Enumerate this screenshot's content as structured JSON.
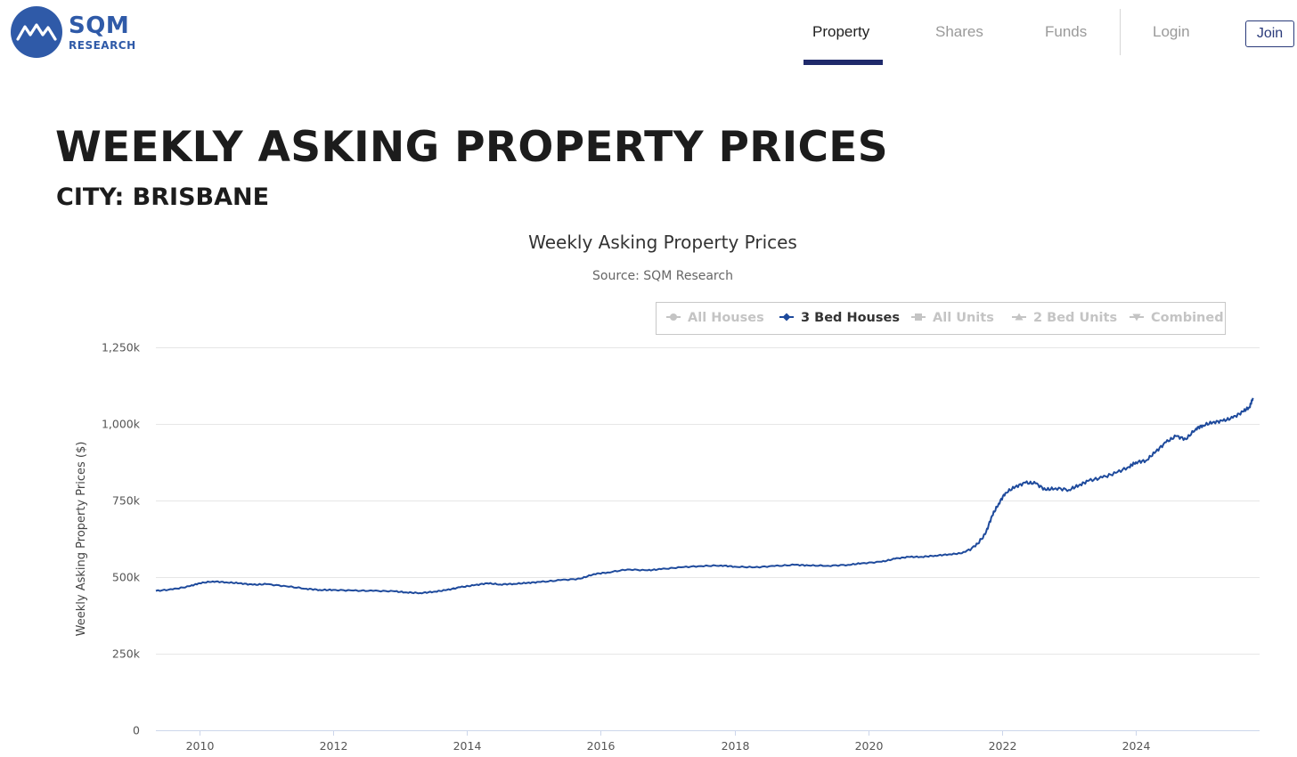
{
  "header": {
    "logo_main": "SQM",
    "logo_sub": "RESEARCH",
    "nav": [
      {
        "label": "Property",
        "active": true
      },
      {
        "label": "Shares",
        "active": false
      },
      {
        "label": "Funds",
        "active": false
      },
      {
        "label": "Login",
        "active": false
      }
    ],
    "join_label": "Join"
  },
  "page": {
    "title": "WEEKLY ASKING PROPERTY PRICES",
    "subtitle": "CITY: BRISBANE"
  },
  "colors": {
    "brand": "#2f5aa8",
    "series": "#1e4a9c",
    "legend_inactive": "#c4c4c4",
    "nav_underline": "#1f2a6b"
  },
  "chart_data": {
    "type": "line",
    "title": "Weekly Asking Property Prices",
    "subtitle": "Source: SQM Research",
    "ylabel": "Weekly Asking Property Prices ($)",
    "xlabel": "",
    "xlim": [
      2009.35,
      2025.85
    ],
    "ylim": [
      0,
      1250000
    ],
    "y_ticks": [
      {
        "value": 0,
        "label": "0"
      },
      {
        "value": 250000,
        "label": "250k"
      },
      {
        "value": 500000,
        "label": "500k"
      },
      {
        "value": 750000,
        "label": "750k"
      },
      {
        "value": 1000000,
        "label": "1,000k"
      },
      {
        "value": 1250000,
        "label": "1,250k"
      }
    ],
    "x_ticks": [
      {
        "value": 2010,
        "label": "2010"
      },
      {
        "value": 2012,
        "label": "2012"
      },
      {
        "value": 2014,
        "label": "2014"
      },
      {
        "value": 2016,
        "label": "2016"
      },
      {
        "value": 2018,
        "label": "2018"
      },
      {
        "value": 2020,
        "label": "2020"
      },
      {
        "value": 2022,
        "label": "2022"
      },
      {
        "value": 2024,
        "label": "2024"
      }
    ],
    "grid": true,
    "legend_position": "top-right",
    "legend": [
      {
        "name": "All Houses",
        "symbol": "circle",
        "active": false
      },
      {
        "name": "3 Bed Houses",
        "symbol": "diamond",
        "active": true
      },
      {
        "name": "All Units",
        "symbol": "square",
        "active": false
      },
      {
        "name": "2 Bed Units",
        "symbol": "triangle",
        "active": false
      },
      {
        "name": "Combined",
        "symbol": "triangle-down",
        "active": false
      }
    ],
    "series": [
      {
        "name": "3 Bed Houses",
        "x": [
          2009.35,
          2009.6,
          2009.85,
          2010.0,
          2010.2,
          2010.4,
          2010.6,
          2010.8,
          2011.0,
          2011.3,
          2011.6,
          2011.8,
          2012.0,
          2012.3,
          2012.6,
          2012.9,
          2013.1,
          2013.3,
          2013.5,
          2013.7,
          2013.9,
          2014.1,
          2014.3,
          2014.5,
          2014.7,
          2014.9,
          2015.1,
          2015.4,
          2015.7,
          2015.9,
          2016.1,
          2016.4,
          2016.7,
          2016.9,
          2017.2,
          2017.5,
          2017.8,
          2018.0,
          2018.3,
          2018.6,
          2018.9,
          2019.1,
          2019.4,
          2019.7,
          2019.9,
          2020.2,
          2020.4,
          2020.6,
          2020.8,
          2021.0,
          2021.2,
          2021.4,
          2021.6,
          2021.75,
          2021.85,
          2021.95,
          2022.05,
          2022.2,
          2022.35,
          2022.5,
          2022.65,
          2022.8,
          2023.0,
          2023.15,
          2023.3,
          2023.5,
          2023.7,
          2023.9,
          2024.0,
          2024.15,
          2024.3,
          2024.45,
          2024.6,
          2024.75,
          2024.9,
          2025.0,
          2025.15,
          2025.3,
          2025.45,
          2025.6,
          2025.7,
          2025.75
        ],
        "values": [
          455000,
          460000,
          470000,
          480000,
          486000,
          483000,
          480000,
          475000,
          477000,
          470000,
          462000,
          458000,
          458000,
          456000,
          455000,
          454000,
          450000,
          448000,
          452000,
          458000,
          467000,
          473000,
          480000,
          476000,
          478000,
          481000,
          484000,
          490000,
          495000,
          510000,
          515000,
          525000,
          522000,
          526000,
          532000,
          536000,
          538000,
          534000,
          532000,
          536000,
          540000,
          538000,
          537000,
          540000,
          545000,
          550000,
          560000,
          566000,
          566000,
          570000,
          574000,
          578000,
          600000,
          640000,
          700000,
          740000,
          775000,
          795000,
          808000,
          806000,
          785000,
          790000,
          785000,
          800000,
          815000,
          825000,
          840000,
          860000,
          875000,
          880000,
          910000,
          940000,
          960000,
          950000,
          985000,
          995000,
          1005000,
          1010000,
          1020000,
          1040000,
          1055000,
          1085000
        ]
      }
    ]
  }
}
